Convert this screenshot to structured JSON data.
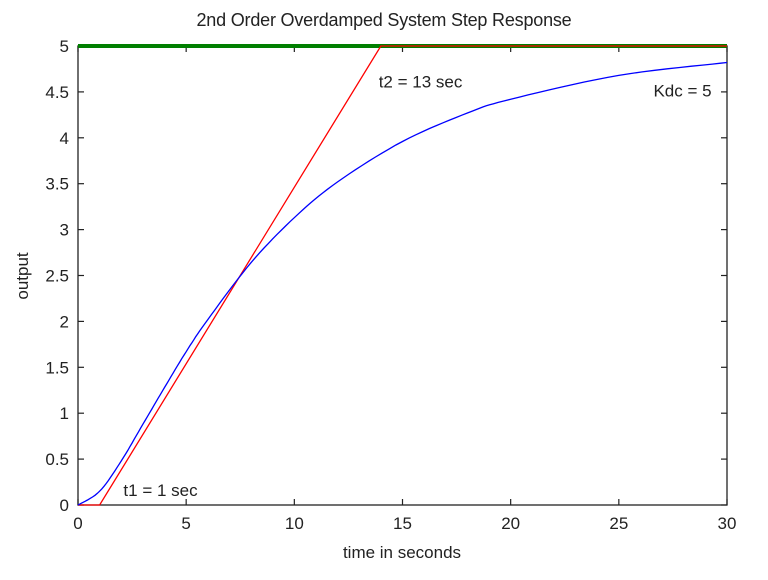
{
  "chart_data": {
    "type": "line",
    "title": "2nd Order Overdamped System Step Response",
    "xlabel": "time in seconds",
    "ylabel": "output",
    "xlim": [
      0,
      30
    ],
    "ylim": [
      0,
      5
    ],
    "grid": false,
    "x_ticks": [
      0,
      5,
      10,
      15,
      20,
      25,
      30
    ],
    "y_ticks": [
      0,
      0.5,
      1,
      1.5,
      2,
      2.5,
      3,
      3.5,
      4,
      4.5,
      5
    ],
    "y_tick_labels": [
      "0",
      "0.5",
      "1",
      "1.5",
      "2",
      "2.5",
      "3",
      "3.5",
      "4",
      "4.5",
      "5"
    ],
    "series": [
      {
        "name": "step response",
        "color": "#0000ff",
        "x": [
          0,
          1,
          2,
          3,
          4,
          5,
          6,
          8,
          10,
          12,
          15,
          18,
          20,
          25,
          30
        ],
        "y": [
          0,
          0.15,
          0.48,
          0.88,
          1.28,
          1.67,
          2.02,
          2.64,
          3.13,
          3.52,
          3.96,
          4.27,
          4.42,
          4.68,
          4.82
        ]
      },
      {
        "name": "tangent line",
        "color": "#ff0000",
        "x": [
          0,
          1,
          14,
          30
        ],
        "y": [
          0,
          0,
          5,
          5
        ]
      },
      {
        "name": "steady state Kdc",
        "color": "#007f00",
        "x": [
          0,
          30
        ],
        "y": [
          5,
          5
        ]
      }
    ],
    "annotations": [
      {
        "text": "t1 = 1 sec",
        "x": 2.1,
        "y": 0.1
      },
      {
        "text": "t2 = 13 sec",
        "x": 13.9,
        "y": 4.55
      },
      {
        "text": "Kdc = 5",
        "x": 26.6,
        "y": 4.45
      }
    ]
  }
}
